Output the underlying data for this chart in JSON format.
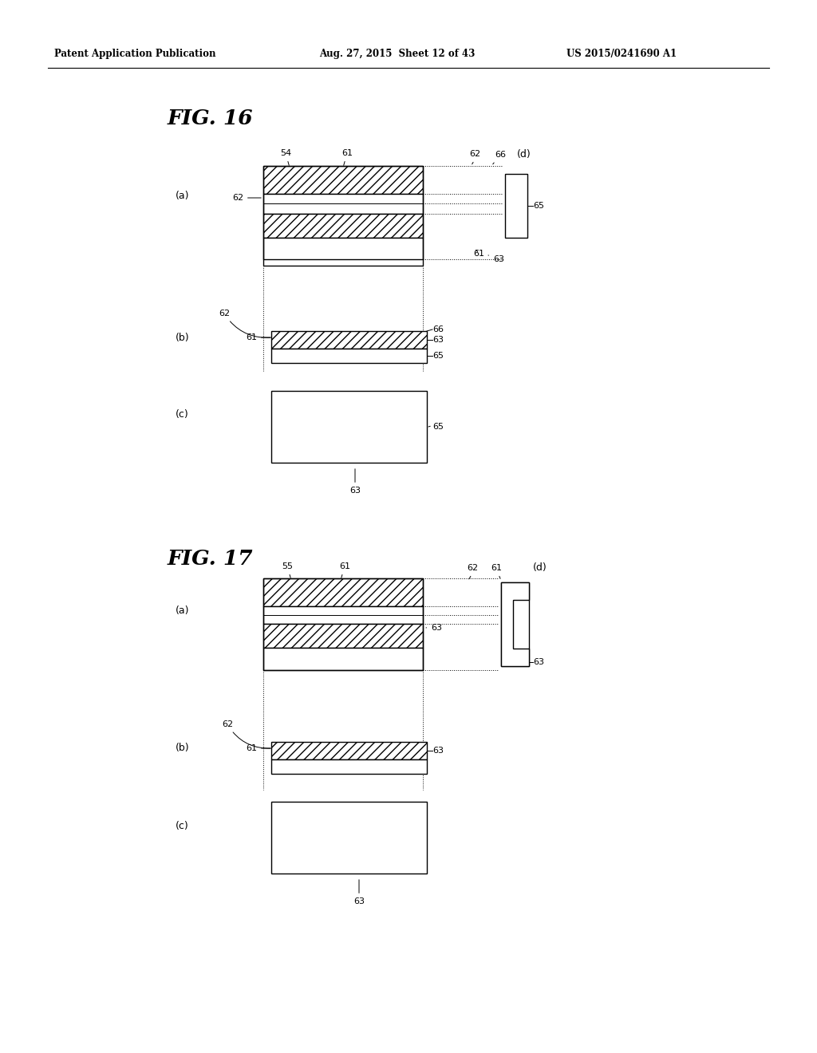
{
  "bg_color": "#ffffff",
  "header_left": "Patent Application Publication",
  "header_mid": "Aug. 27, 2015  Sheet 12 of 43",
  "header_right": "US 2015/0241690 A1"
}
